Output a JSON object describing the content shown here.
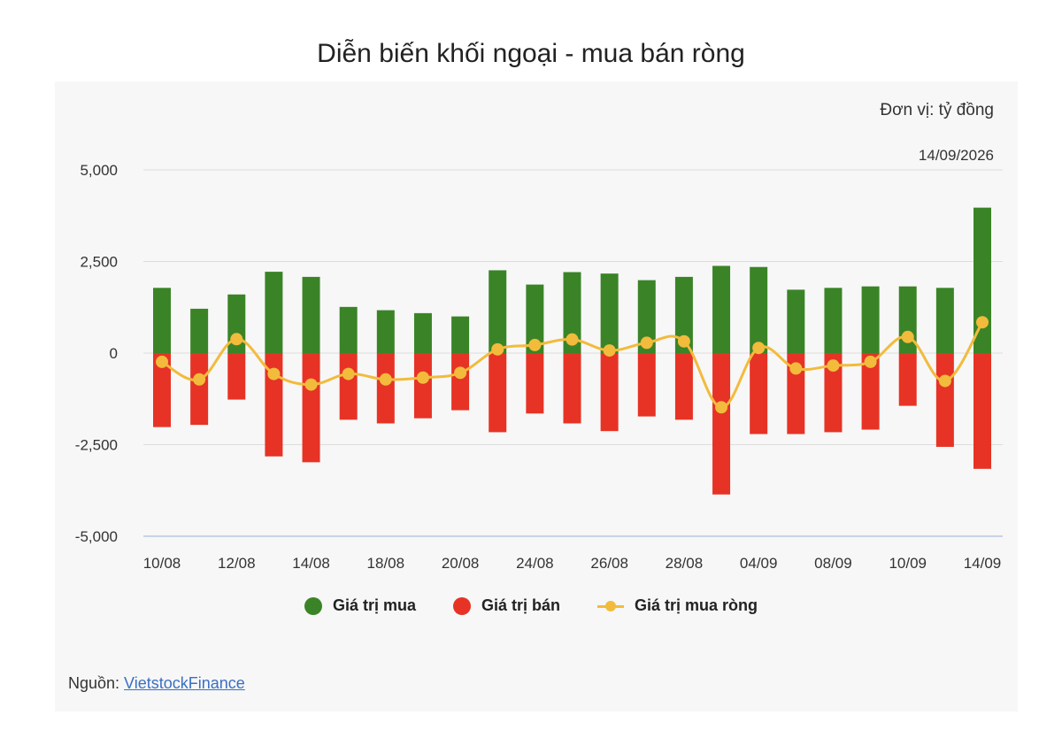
{
  "chart_data": {
    "type": "bar",
    "title": "Diễn biến khối ngoại - mua bán ròng",
    "unit_label": "Đơn vị: tỷ đồng",
    "date_label": "14/09/2026",
    "ylim": [
      -5000,
      5000
    ],
    "y_ticks": [
      5000,
      2500,
      0,
      -2500,
      -5000
    ],
    "y_tick_labels": [
      "5,000",
      "2,500",
      "0",
      "-2,500",
      "-5,000"
    ],
    "x_tick_labels": [
      "10/08",
      "12/08",
      "14/08",
      "18/08",
      "20/08",
      "24/08",
      "26/08",
      "28/08",
      "04/09",
      "08/09",
      "10/09",
      "14/09"
    ],
    "grid": true,
    "legend_position": "bottom",
    "series": [
      {
        "name": "Giá trị mua",
        "type": "bar",
        "color": "#3a8427",
        "values": [
          1780,
          1210,
          1600,
          2220,
          2080,
          1260,
          1170,
          1090,
          1000,
          2260,
          1870,
          2210,
          2170,
          1990,
          2080,
          2380,
          2350,
          1730,
          1780,
          1820,
          1820,
          1780,
          3970
        ]
      },
      {
        "name": "Giá trị bán",
        "type": "bar",
        "color": "#e63325",
        "values": [
          -2020,
          -1960,
          -1270,
          -2820,
          -2980,
          -1820,
          -1920,
          -1780,
          -1560,
          -2160,
          -1650,
          -1920,
          -2130,
          -1730,
          -1820,
          -3860,
          -2210,
          -2210,
          -2160,
          -2090,
          -1440,
          -2560,
          -3160
        ]
      },
      {
        "name": "Giá trị mua ròng",
        "type": "line",
        "color": "#f2bb3c",
        "values": [
          -240,
          -720,
          380,
          -570,
          -860,
          -570,
          -720,
          -670,
          -540,
          100,
          220,
          370,
          70,
          280,
          320,
          -1480,
          140,
          -420,
          -340,
          -240,
          440,
          -760,
          840
        ]
      }
    ]
  },
  "source": {
    "label": "Nguồn: ",
    "link_text": "VietstockFinance"
  }
}
